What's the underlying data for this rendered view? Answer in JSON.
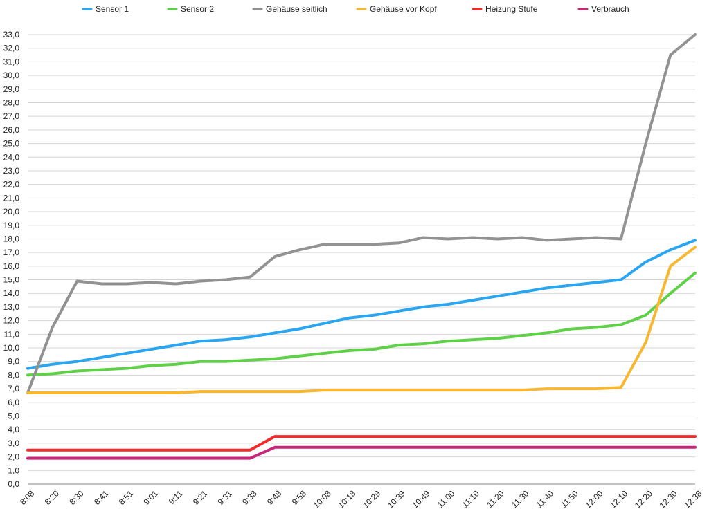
{
  "chart_data": {
    "type": "line",
    "categories": [
      "8:08",
      "8:20",
      "8:30",
      "8:41",
      "8:51",
      "9:01",
      "9:11",
      "9:21",
      "9:31",
      "9:38",
      "9:48",
      "9:58",
      "10:08",
      "10:18",
      "10:29",
      "10:39",
      "10:49",
      "11:00",
      "11:10",
      "11:20",
      "11:30",
      "11:40",
      "11:50",
      "12:00",
      "12:10",
      "12:20",
      "12:30",
      "12:38"
    ],
    "ylim": [
      0,
      33
    ],
    "ytick_step": 1,
    "ytick_labels": [
      "0,0",
      "1,0",
      "2,0",
      "3,0",
      "4,0",
      "5,0",
      "6,0",
      "7,0",
      "8,0",
      "9,0",
      "10,0",
      "11,0",
      "12,0",
      "13,0",
      "14,0",
      "15,0",
      "16,0",
      "17,0",
      "18,0",
      "19,0",
      "20,0",
      "21,0",
      "22,0",
      "23,0",
      "24,0",
      "25,0",
      "26,0",
      "27,0",
      "28,0",
      "29,0",
      "30,0",
      "31,0",
      "32,0",
      "33,0"
    ],
    "grid": true,
    "legend_position": "top",
    "series": [
      {
        "name": "Sensor 1",
        "color": "#2aa5f0",
        "values": [
          8.5,
          8.8,
          9.0,
          9.3,
          9.6,
          9.9,
          10.2,
          10.5,
          10.6,
          10.8,
          11.1,
          11.4,
          11.8,
          12.2,
          12.4,
          12.7,
          13.0,
          13.2,
          13.5,
          13.8,
          14.1,
          14.4,
          14.6,
          14.8,
          15.0,
          16.3,
          17.2,
          17.9
        ]
      },
      {
        "name": "Sensor 2",
        "color": "#5fd148",
        "values": [
          8.0,
          8.1,
          8.3,
          8.4,
          8.5,
          8.7,
          8.8,
          9.0,
          9.0,
          9.1,
          9.2,
          9.4,
          9.6,
          9.8,
          9.9,
          10.2,
          10.3,
          10.5,
          10.6,
          10.7,
          10.9,
          11.1,
          11.4,
          11.5,
          11.7,
          12.4,
          14.0,
          15.5
        ]
      },
      {
        "name": "Gehäuse seitlich",
        "color": "#929292",
        "values": [
          6.7,
          11.5,
          14.9,
          14.7,
          14.7,
          14.8,
          14.7,
          14.9,
          15.0,
          15.2,
          16.7,
          17.2,
          17.6,
          17.6,
          17.6,
          17.7,
          18.1,
          18.0,
          18.1,
          18.0,
          18.1,
          17.9,
          18.0,
          18.1,
          18.0,
          25.0,
          31.5,
          33.0
        ]
      },
      {
        "name": "Gehäuse vor Kopf",
        "color": "#f7b731",
        "values": [
          6.7,
          6.7,
          6.7,
          6.7,
          6.7,
          6.7,
          6.7,
          6.8,
          6.8,
          6.8,
          6.8,
          6.8,
          6.9,
          6.9,
          6.9,
          6.9,
          6.9,
          6.9,
          6.9,
          6.9,
          6.9,
          7.0,
          7.0,
          7.0,
          7.1,
          10.4,
          16.0,
          17.4
        ]
      },
      {
        "name": "Heizung Stufe",
        "color": "#f02a2a",
        "values": [
          2.5,
          2.5,
          2.5,
          2.5,
          2.5,
          2.5,
          2.5,
          2.5,
          2.5,
          2.5,
          3.5,
          3.5,
          3.5,
          3.5,
          3.5,
          3.5,
          3.5,
          3.5,
          3.5,
          3.5,
          3.5,
          3.5,
          3.5,
          3.5,
          3.5,
          3.5,
          3.5,
          3.5
        ]
      },
      {
        "name": "Verbrauch",
        "color": "#c92879",
        "values": [
          1.9,
          1.9,
          1.9,
          1.9,
          1.9,
          1.9,
          1.9,
          1.9,
          1.9,
          1.9,
          2.7,
          2.7,
          2.7,
          2.7,
          2.7,
          2.7,
          2.7,
          2.7,
          2.7,
          2.7,
          2.7,
          2.7,
          2.7,
          2.7,
          2.7,
          2.7,
          2.7,
          2.7
        ]
      }
    ]
  }
}
